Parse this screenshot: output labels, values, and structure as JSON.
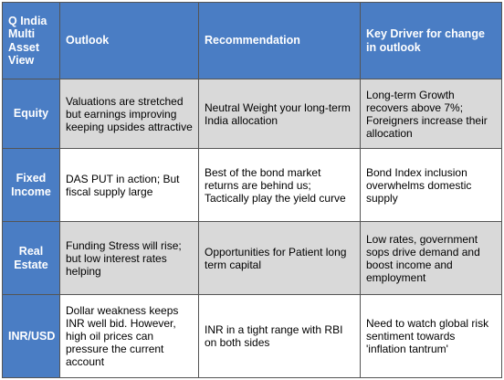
{
  "table": {
    "headers": [
      "Q India Multi Asset View",
      "Outlook",
      "Recommendation",
      "Key Driver for change in outlook"
    ],
    "rows": [
      {
        "asset": "Equity",
        "outlook": "Valuations are stretched but earnings improving keeping upsides attractive",
        "recommendation": "Neutral Weight your long-term India allocation",
        "key_driver": "Long-term Growth recovers above 7%; Foreigners increase their allocation"
      },
      {
        "asset": "Fixed Income",
        "outlook": "DAS PUT in action; But fiscal supply large",
        "recommendation": "Best of the bond market returns are behind us; Tactically play the yield curve",
        "key_driver": "Bond Index inclusion overwhelms domestic supply"
      },
      {
        "asset": "Real Estate",
        "outlook": "Funding Stress will rise; but low interest rates helping",
        "recommendation": "Opportunities for Patient long term capital",
        "key_driver": "Low rates, government sops drive demand and boost income and employment"
      },
      {
        "asset": "INR/USD",
        "outlook": "Dollar weakness keeps INR well bid. However, high oil prices can pressure the current account",
        "recommendation": "INR in a tight range with RBI on both sides",
        "key_driver": "Need to watch global risk sentiment towards 'inflation tantrum'"
      }
    ]
  },
  "colors": {
    "header_blue": "#4a7dc4",
    "row_gray": "#d9d9d9",
    "border": "#555555"
  }
}
